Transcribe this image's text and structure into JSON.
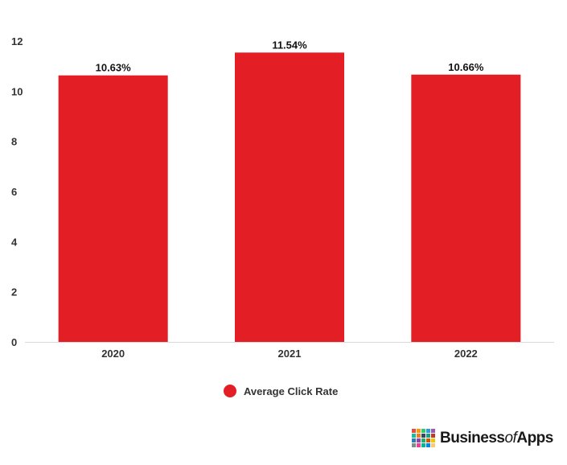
{
  "chart_data": {
    "type": "bar",
    "categories": [
      "2020",
      "2021",
      "2022"
    ],
    "series": [
      {
        "name": "Average Click Rate",
        "values": [
          10.63,
          11.54,
          10.66
        ],
        "color": "#e31e24"
      }
    ],
    "data_labels": [
      "10.63%",
      "11.54%",
      "10.66%"
    ],
    "ylim": [
      0,
      12
    ],
    "yticks": [
      "0",
      "2",
      "4",
      "6",
      "8",
      "10",
      "12"
    ],
    "ytick_values": [
      0,
      2,
      4,
      6,
      8,
      10,
      12
    ],
    "grid": false,
    "legend_position": "bottom"
  },
  "legend": {
    "label": "Average Click Rate",
    "color": "#e31e24"
  },
  "logo": {
    "part1": "Business",
    "part2": "of",
    "part3": "Apps",
    "tile_colors": [
      "#e74c3c",
      "#f39c12",
      "#2ecc71",
      "#3498db",
      "#9b59b6",
      "#1abc9c",
      "#e67e22",
      "#34495e",
      "#16a085",
      "#c0392b",
      "#2980b9",
      "#8e44ad",
      "#27ae60",
      "#d35400",
      "#f1c40f",
      "#7f8c8d",
      "#e84393",
      "#00b894",
      "#0984e3",
      "#fdcb6e"
    ]
  }
}
